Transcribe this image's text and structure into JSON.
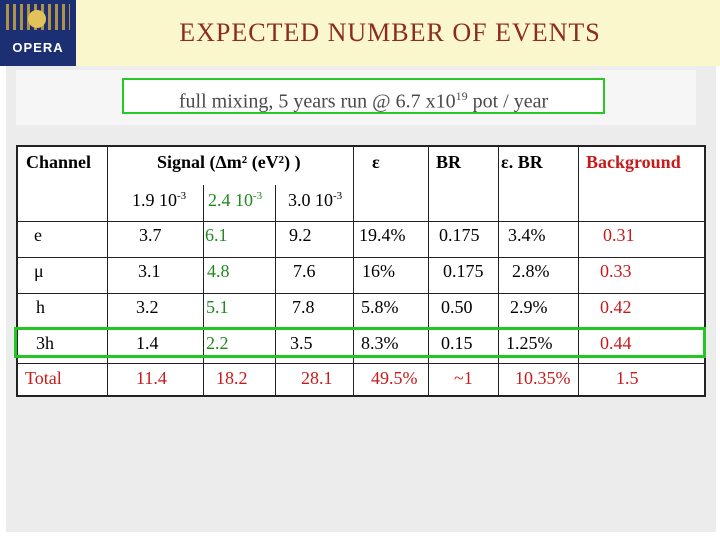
{
  "header": {
    "logo_text": "OPERA",
    "title": "EXPECTED NUMBER OF EVENTS"
  },
  "subtitle": {
    "text_before": "full mixing, 5 years run @ 6.7 x10",
    "exponent": "19",
    "text_after": " pot / year"
  },
  "table": {
    "headers": {
      "channel": "Channel",
      "signal": "Signal (Δm² (eV²) )",
      "epsilon": "ε",
      "br": "BR",
      "eps_br": "ε. BR",
      "background": "Background"
    },
    "dm2_values": [
      {
        "mantissa": "1.9 10",
        "exp": "-3"
      },
      {
        "mantissa": "2.4 10",
        "exp": "-3"
      },
      {
        "mantissa": "3.0 10",
        "exp": "-3"
      }
    ],
    "rows": [
      {
        "channel": "e",
        "s1": "3.7",
        "s2": "6.1",
        "s3": "9.2",
        "eff": "19.4%",
        "br": "0.175",
        "effbr": "3.4%",
        "bg": "0.31"
      },
      {
        "channel": "μ",
        "s1": "3.1",
        "s2": "4.8",
        "s3": "7.6",
        "eff": "16%",
        "br": "0.175",
        "effbr": "2.8%",
        "bg": "0.33"
      },
      {
        "channel": "h",
        "s1": "3.2",
        "s2": "5.1",
        "s3": "7.8",
        "eff": "5.8%",
        "br": "0.50",
        "effbr": "2.9%",
        "bg": "0.42"
      },
      {
        "channel": "3h",
        "s1": "1.4",
        "s2": "2.2",
        "s3": "3.5",
        "eff": "8.3%",
        "br": "0.15",
        "effbr": "1.25%",
        "bg": "0.44"
      }
    ],
    "total": {
      "channel": "Total",
      "s1": "11.4",
      "s2": "18.2",
      "s3": "28.1",
      "eff": "49.5%",
      "br": "~1",
      "effbr": "10.35%",
      "bg": "1.5"
    }
  },
  "colors": {
    "title": "#8b2b22",
    "header_bar": "#fbf7cc",
    "highlight_border": "#22c722",
    "signal_green": "#1f8a1f",
    "background_red": "#c81a1a"
  }
}
